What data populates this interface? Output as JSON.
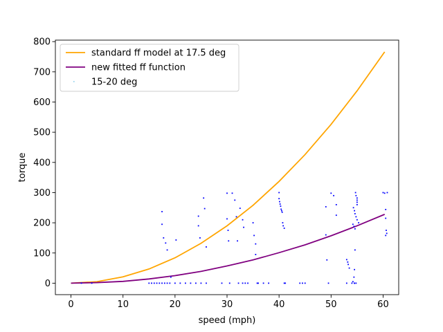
{
  "chart_data": {
    "type": "scatter",
    "xlabel": "speed (mph)",
    "ylabel": "torque",
    "xlim": [
      -3,
      63
    ],
    "ylim": [
      -38,
      805
    ],
    "xticks": [
      0,
      10,
      20,
      30,
      40,
      50,
      60
    ],
    "yticks": [
      0,
      100,
      200,
      300,
      400,
      500,
      600,
      700,
      800
    ],
    "grid": false,
    "legend_position": "top-left",
    "series": [
      {
        "name": "standard ff model at 17.5 deg",
        "kind": "line",
        "color": "#ffa500",
        "x": [
          0,
          5,
          10,
          15,
          20,
          25,
          30,
          35,
          40,
          45,
          50,
          55,
          60.3
        ],
        "y": [
          0,
          5,
          21,
          47,
          84,
          132,
          190,
          258,
          337,
          426,
          526,
          637,
          766
        ]
      },
      {
        "name": "new fitted ff function",
        "kind": "line",
        "color": "#800080",
        "x": [
          0,
          5,
          10,
          15,
          20,
          25,
          30,
          35,
          40,
          45,
          50,
          55,
          60.3
        ],
        "y": [
          0,
          2,
          6,
          14,
          25,
          39,
          57,
          77,
          101,
          127,
          157,
          190,
          228
        ]
      },
      {
        "name": "15-20 deg",
        "kind": "scatter",
        "color": "#0000ff",
        "legend_marker_color": "#87ceeb",
        "x": [
          2,
          4,
          15,
          15.5,
          16,
          16.5,
          17,
          17.5,
          18,
          18.5,
          19,
          20,
          21,
          22,
          23,
          24,
          25,
          26,
          17.5,
          17.5,
          17.8,
          18.2,
          18.5,
          19.2,
          20.2,
          24.5,
          24.5,
          24.8,
          25.5,
          25.7,
          26,
          29,
          30,
          30,
          30.2,
          30.3,
          30.5,
          31,
          31.5,
          31.8,
          32,
          32.2,
          32.5,
          33,
          33.2,
          33.5,
          33,
          34,
          35,
          35.2,
          35.5,
          35.5,
          35.8,
          36,
          37,
          38,
          40,
          40,
          40.1,
          40.2,
          40.3,
          40.4,
          40.5,
          40.6,
          40.7,
          40.8,
          41,
          41,
          41.2,
          44,
          44.5,
          45,
          49,
          49,
          49.2,
          49.5,
          50,
          50.5,
          51,
          51,
          53,
          53,
          53.2,
          53.3,
          53.5,
          54,
          54.2,
          54.4,
          54.5,
          54.6,
          54.7,
          54.8,
          55,
          55,
          55,
          55,
          54.3,
          54.5,
          54.6,
          54.8,
          55,
          55.3,
          54.2,
          54.4,
          54.6,
          54.8,
          54.5,
          54.5,
          60,
          60.3,
          60.5,
          60.5,
          60.6,
          60.7,
          60.5,
          60.8
        ],
        "y": [
          0,
          0,
          0,
          0,
          0,
          0,
          0,
          0,
          0,
          0,
          0,
          0,
          0,
          0,
          0,
          0,
          0,
          0,
          237,
          195,
          150,
          133,
          110,
          20,
          143,
          222,
          190,
          150,
          282,
          247,
          120,
          0,
          298,
          213,
          175,
          140,
          0,
          298,
          275,
          220,
          140,
          0,
          248,
          210,
          185,
          0,
          0,
          0,
          200,
          158,
          130,
          95,
          0,
          0,
          0,
          0,
          300,
          280,
          270,
          262,
          255,
          245,
          240,
          235,
          200,
          190,
          0,
          182,
          0,
          0,
          0,
          0,
          253,
          160,
          77,
          0,
          298,
          290,
          260,
          225,
          0,
          78,
          70,
          62,
          50,
          0,
          5,
          20,
          45,
          110,
          300,
          290,
          282,
          275,
          268,
          260,
          250,
          240,
          230,
          220,
          210,
          200,
          195,
          188,
          180,
          0,
          0,
          0,
          300,
          298,
          244,
          215,
          175,
          165,
          158,
          300
        ]
      }
    ]
  }
}
